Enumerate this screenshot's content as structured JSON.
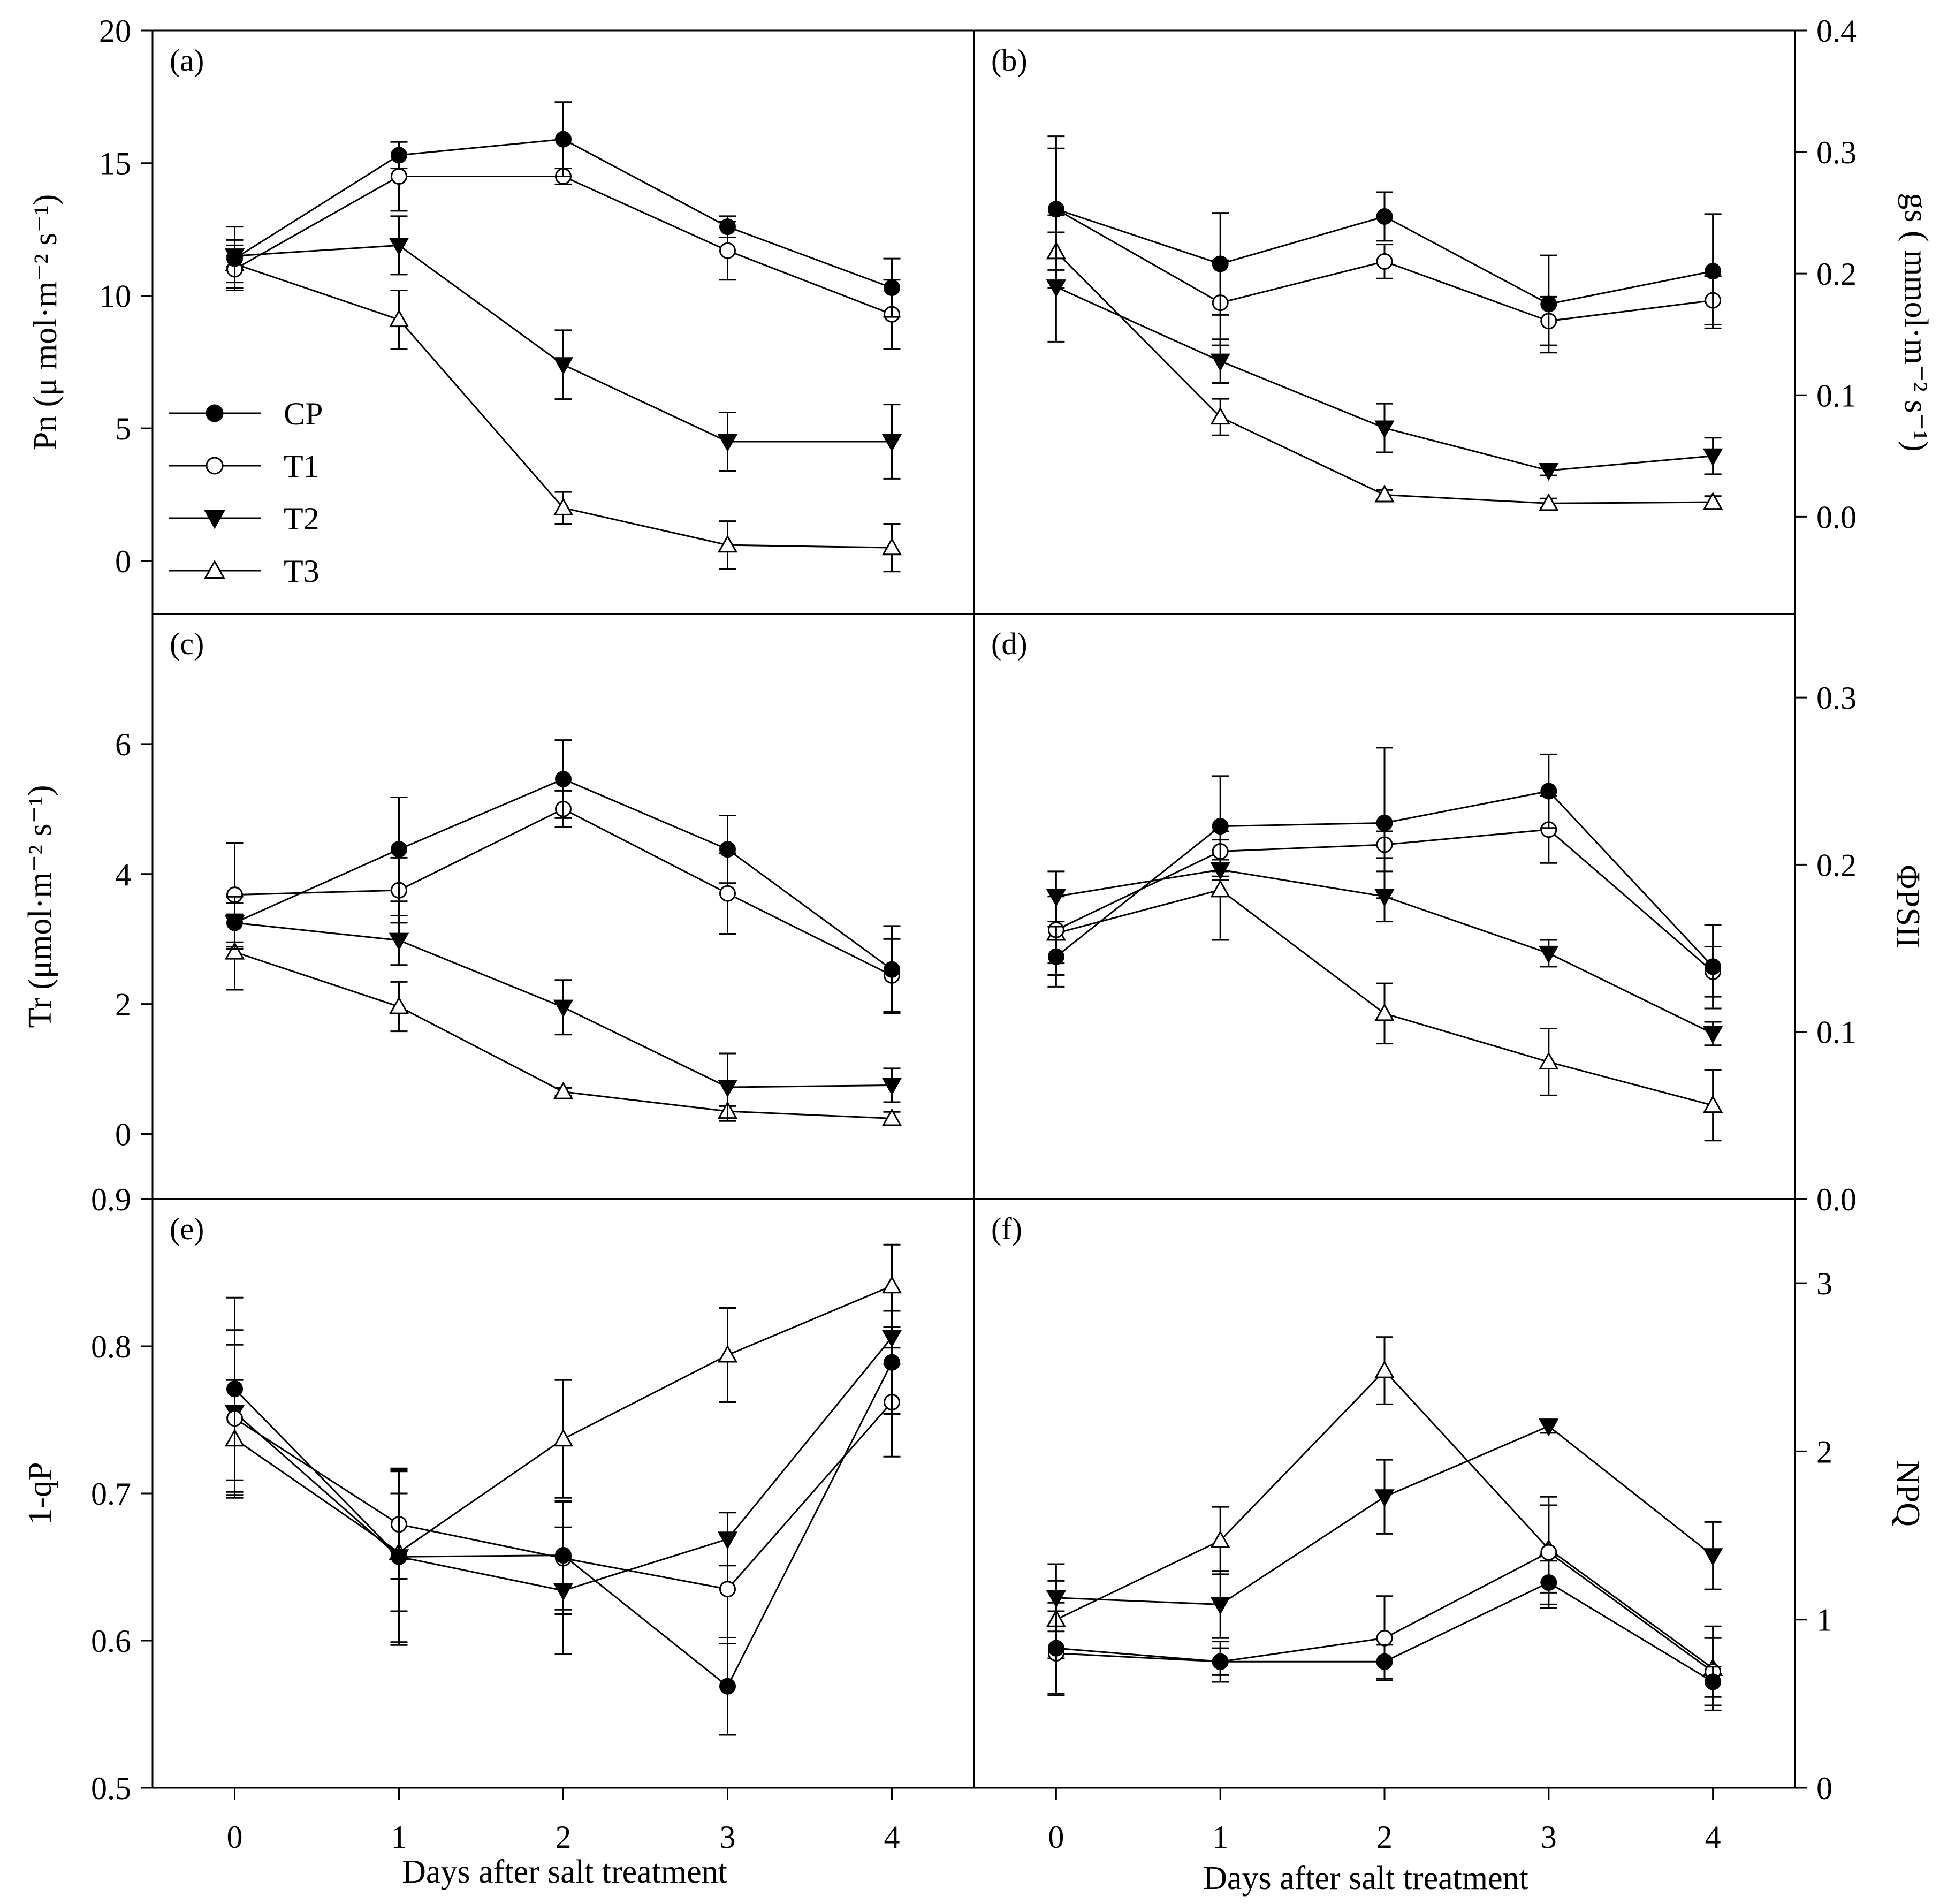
{
  "legend": [
    {
      "name": "CP",
      "marker": "circle-filled"
    },
    {
      "name": "T1",
      "marker": "circle-open"
    },
    {
      "name": "T2",
      "marker": "triangle-down-filled"
    },
    {
      "name": "T3",
      "marker": "triangle-up-open"
    }
  ],
  "xlabel": "Days after salt treatment",
  "chart_data": [
    {
      "id": "a",
      "tag": "(a)",
      "type": "line",
      "ylabel": "Pn (μ mol·m⁻² s⁻¹)",
      "x": [
        0,
        1,
        2,
        3,
        4
      ],
      "xlim": [
        -0.5,
        4.5
      ],
      "xticks": [
        "0",
        "1",
        "2",
        "3",
        "4"
      ],
      "ylim": [
        -2,
        20
      ],
      "yticks": [
        0,
        5,
        10,
        15,
        20
      ],
      "ytick_labels": [
        "0",
        "5",
        "10",
        "15",
        "20"
      ],
      "series": [
        {
          "name": "CP",
          "values": [
            11.4,
            15.3,
            15.9,
            12.6,
            10.3
          ],
          "errors": [
            1.2,
            0.5,
            1.4,
            0.4,
            1.1
          ]
        },
        {
          "name": "T1",
          "values": [
            11.0,
            14.5,
            14.5,
            11.7,
            9.3
          ],
          "errors": [
            0.5,
            1.3,
            0.3,
            1.1,
            1.3
          ]
        },
        {
          "name": "T2",
          "values": [
            11.5,
            11.9,
            7.4,
            4.5,
            4.5
          ],
          "errors": [
            0.4,
            1.1,
            1.3,
            1.1,
            1.4
          ]
        },
        {
          "name": "T3",
          "values": [
            11.2,
            9.1,
            2.0,
            0.6,
            0.5
          ],
          "errors": [
            0.9,
            1.1,
            0.6,
            0.9,
            0.9
          ]
        }
      ]
    },
    {
      "id": "b",
      "tag": "(b)",
      "type": "line",
      "ylabel": "gs ( mmol·m⁻² s⁻¹)",
      "x": [
        0,
        1,
        2,
        3,
        4
      ],
      "xlim": [
        -0.5,
        4.5
      ],
      "xticks": [
        "0",
        "1",
        "2",
        "3",
        "4"
      ],
      "ylim": [
        -0.08,
        0.4
      ],
      "yticks": [
        0,
        0.1,
        0.2,
        0.3,
        0.4
      ],
      "ytick_labels": [
        "0.0",
        "0.1",
        "0.2",
        "0.3",
        "0.4"
      ],
      "series": [
        {
          "name": "CP",
          "values": [
            0.253,
            0.208,
            0.247,
            0.175,
            0.202
          ],
          "errors": [
            0.05,
            0.042,
            0.02,
            0.04,
            0.047
          ]
        },
        {
          "name": "T1",
          "values": [
            0.253,
            0.176,
            0.21,
            0.161,
            0.178
          ],
          "errors": [
            0.06,
            0.035,
            0.014,
            0.02,
            0.02
          ]
        },
        {
          "name": "T2",
          "values": [
            0.189,
            0.128,
            0.073,
            0.038,
            0.05
          ],
          "errors": [
            0.045,
            0.018,
            0.02,
            0.004,
            0.015
          ]
        },
        {
          "name": "T3",
          "values": [
            0.218,
            0.082,
            0.018,
            0.011,
            0.012
          ],
          "errors": [
            0.03,
            0.015,
            0.004,
            0.004,
            0.005
          ]
        }
      ]
    },
    {
      "id": "c",
      "tag": "(c)",
      "type": "line",
      "ylabel": "Tr (μmol·m⁻² s⁻¹)",
      "x": [
        0,
        1,
        2,
        3,
        4
      ],
      "xlim": [
        -0.5,
        4.5
      ],
      "xticks": [
        "0",
        "1",
        "2",
        "3",
        "4"
      ],
      "ylim": [
        -1,
        8
      ],
      "yticks": [
        0,
        2,
        4,
        6
      ],
      "ytick_labels": [
        "0",
        "2",
        "4",
        "6"
      ],
      "series": [
        {
          "name": "CP",
          "values": [
            3.25,
            4.38,
            5.46,
            4.38,
            2.53
          ],
          "errors": [
            0.4,
            0.8,
            0.6,
            0.52,
            0.67
          ]
        },
        {
          "name": "T1",
          "values": [
            3.68,
            3.75,
            5.0,
            3.7,
            2.44
          ],
          "errors": [
            0.8,
            0.5,
            0.28,
            0.62,
            0.56
          ]
        },
        {
          "name": "T2",
          "values": [
            3.25,
            2.98,
            1.95,
            0.72,
            0.75
          ],
          "errors": [
            0.3,
            0.38,
            0.42,
            0.52,
            0.26
          ]
        },
        {
          "name": "T3",
          "values": [
            2.8,
            1.96,
            0.65,
            0.35,
            0.24
          ],
          "errors": [
            0.58,
            0.38,
            0.06,
            0.08,
            0.1
          ]
        }
      ]
    },
    {
      "id": "d",
      "tag": "(d)",
      "type": "line",
      "ylabel": "ΦPSII",
      "x": [
        0,
        1,
        2,
        3,
        4
      ],
      "xlim": [
        -0.5,
        4.5
      ],
      "xticks": [
        "0",
        "1",
        "2",
        "3",
        "4"
      ],
      "ylim": [
        0,
        0.35
      ],
      "yticks": [
        0,
        0.1,
        0.2,
        0.3
      ],
      "ytick_labels": [
        "0.0",
        "0.1",
        "0.2",
        "0.3"
      ],
      "series": [
        {
          "name": "CP",
          "values": [
            0.145,
            0.223,
            0.225,
            0.244,
            0.139
          ],
          "errors": [
            0.018,
            0.03,
            0.045,
            0.022,
            0.025
          ]
        },
        {
          "name": "T1",
          "values": [
            0.161,
            0.208,
            0.212,
            0.221,
            0.136
          ],
          "errors": [
            0.02,
            0.012,
            0.008,
            0.02,
            0.015
          ]
        },
        {
          "name": "T2",
          "values": [
            0.181,
            0.197,
            0.181,
            0.147,
            0.099
          ],
          "errors": [
            0.015,
            0.006,
            0.015,
            0.008,
            0.007
          ]
        },
        {
          "name": "T3",
          "values": [
            0.159,
            0.185,
            0.111,
            0.082,
            0.056
          ],
          "errors": [
            0.025,
            0.03,
            0.018,
            0.02,
            0.021
          ]
        }
      ]
    },
    {
      "id": "e",
      "tag": "(e)",
      "type": "line",
      "ylabel": "1-qP",
      "x": [
        0,
        1,
        2,
        3,
        4
      ],
      "xlim": [
        -0.5,
        4.5
      ],
      "xticks": [
        "0",
        "1",
        "2",
        "3",
        "4"
      ],
      "ylim": [
        0.5,
        0.9
      ],
      "yticks": [
        0.5,
        0.6,
        0.7,
        0.8,
        0.9
      ],
      "ytick_labels": [
        "0.5",
        "0.6",
        "0.7",
        "0.8",
        "0.9"
      ],
      "series": [
        {
          "name": "CP",
          "values": [
            0.771,
            0.657,
            0.658,
            0.569,
            0.789
          ],
          "errors": [
            0.062,
            0.058,
            0.037,
            0.033,
            0.035
          ]
        },
        {
          "name": "T1",
          "values": [
            0.751,
            0.679,
            0.656,
            0.635,
            0.762
          ],
          "errors": [
            0.05,
            0.037,
            0.038,
            0.037,
            0.037
          ]
        },
        {
          "name": "T2",
          "values": [
            0.755,
            0.657,
            0.634,
            0.669,
            0.806
          ],
          "errors": [
            0.056,
            0.06,
            0.043,
            0.018,
            0.018
          ]
        },
        {
          "name": "T3",
          "values": [
            0.737,
            0.66,
            0.737,
            0.794,
            0.841
          ],
          "errors": [
            0.04,
            0.04,
            0.04,
            0.032,
            0.028
          ]
        }
      ]
    },
    {
      "id": "f",
      "tag": "(f)",
      "type": "line",
      "ylabel": "NPQ",
      "x": [
        0,
        1,
        2,
        3,
        4
      ],
      "xlim": [
        -0.5,
        4.5
      ],
      "xticks": [
        "0",
        "1",
        "2",
        "3",
        "4"
      ],
      "ylim": [
        0,
        3.5
      ],
      "yticks": [
        0,
        1,
        2,
        3
      ],
      "ytick_labels": [
        "0",
        "1",
        "2",
        "3"
      ],
      "series": [
        {
          "name": "CP",
          "values": [
            0.83,
            0.75,
            0.75,
            1.22,
            0.63
          ],
          "errors": [
            0.27,
            0.12,
            0.1,
            0.13,
            0.09
          ]
        },
        {
          "name": "T1",
          "values": [
            0.8,
            0.75,
            0.89,
            1.4,
            0.69
          ],
          "errors": [
            0.25,
            0.08,
            0.25,
            0.33,
            0.2
          ]
        },
        {
          "name": "T2",
          "values": [
            1.13,
            1.09,
            1.73,
            2.15,
            1.38
          ],
          "errors": [
            0.2,
            0.2,
            0.22,
            0.04,
            0.2
          ]
        },
        {
          "name": "T3",
          "values": [
            1.0,
            1.47,
            2.48,
            1.42,
            0.71
          ],
          "errors": [
            0.23,
            0.2,
            0.2,
            0.26,
            0.25
          ]
        }
      ]
    }
  ]
}
